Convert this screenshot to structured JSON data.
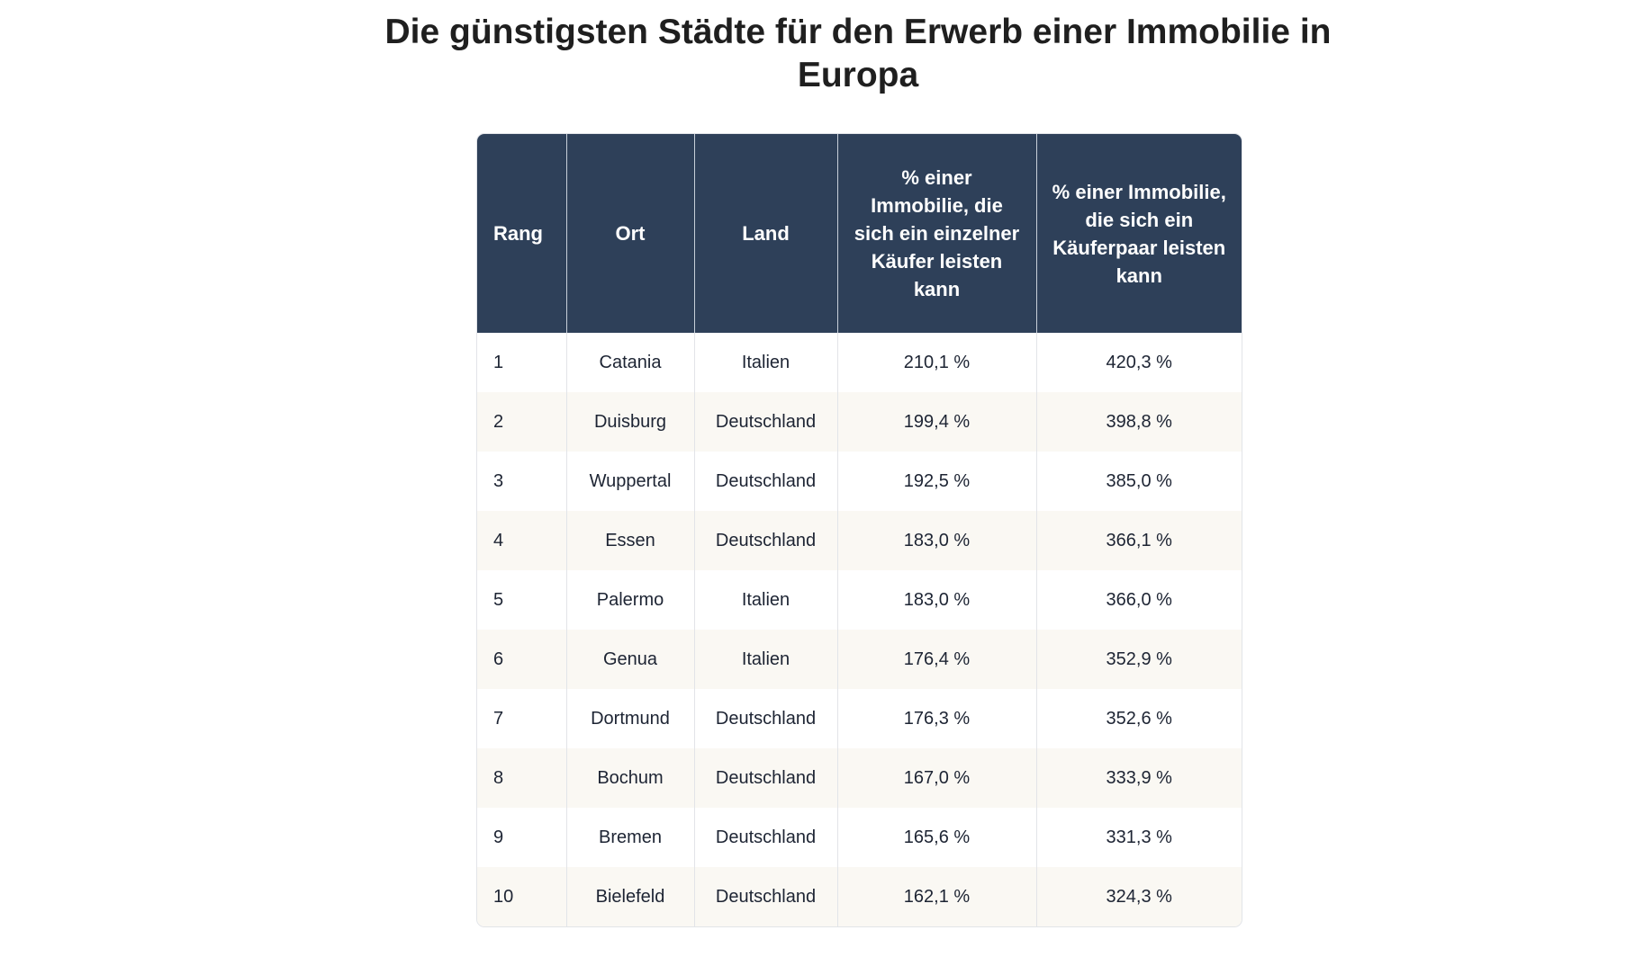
{
  "title": "Die günstigsten Städte für den Erwerb einer Immobilie in Europa",
  "table": {
    "headers": [
      "Rang",
      "Ort",
      "Land",
      "% einer Immobilie, die sich ein einzelner Käufer leisten kann",
      "% einer Immobilie, die sich ein Käuferpaar leisten kann"
    ],
    "rows": [
      [
        "1",
        "Catania",
        "Italien",
        "210,1 %",
        "420,3 %"
      ],
      [
        "2",
        "Duisburg",
        "Deutschland",
        "199,4 %",
        "398,8 %"
      ],
      [
        "3",
        "Wuppertal",
        "Deutschland",
        "192,5 %",
        "385,0 %"
      ],
      [
        "4",
        "Essen",
        "Deutschland",
        "183,0 %",
        "366,1 %"
      ],
      [
        "5",
        "Palermo",
        "Italien",
        "183,0 %",
        "366,0 %"
      ],
      [
        "6",
        "Genua",
        "Italien",
        "176,4 %",
        "352,9 %"
      ],
      [
        "7",
        "Dortmund",
        "Deutschland",
        "176,3 %",
        "352,6 %"
      ],
      [
        "8",
        "Bochum",
        "Deutschland",
        "167,0 %",
        "333,9 %"
      ],
      [
        "9",
        "Bremen",
        "Deutschland",
        "165,6 %",
        "331,3 %"
      ],
      [
        "10",
        "Bielefeld",
        "Deutschland",
        "162,1 %",
        "324,3 %"
      ]
    ]
  },
  "colors": {
    "header_bg": "#2e4059",
    "alt_row_bg": "#faf8f3"
  }
}
